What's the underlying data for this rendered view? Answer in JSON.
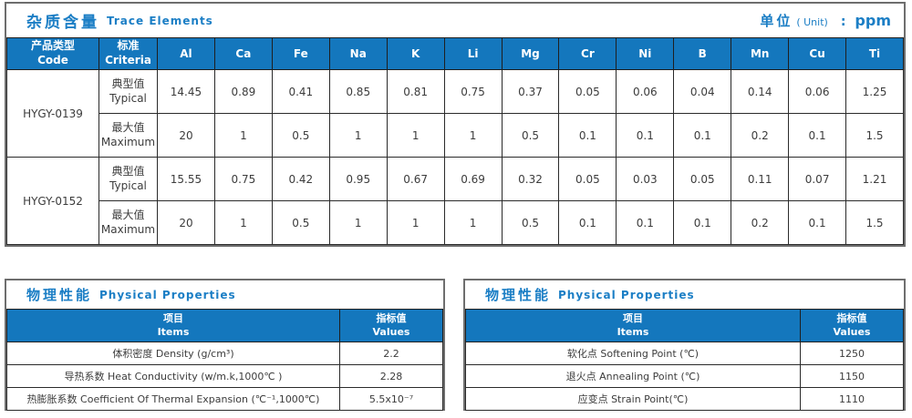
{
  "colors": {
    "accent_blue": "#1477bd",
    "title_blue": "#1b7ec5",
    "header_text": "#ffffff",
    "body_text": "#3c3c3c",
    "inner_border": "#2a2a2a",
    "frame_border": "#6e6e6e"
  },
  "trace": {
    "title_zh": "杂质含量",
    "title_en": "Trace Elements",
    "unit_zh": "单位",
    "unit_en": "( Unit)",
    "unit_colon": ":",
    "unit_value": "ppm",
    "col_code_zh": "产品类型",
    "col_code_en": "Code",
    "col_criteria_zh": "标准",
    "col_criteria_en": "Criteria",
    "elements": [
      "Al",
      "Ca",
      "Fe",
      "Na",
      "K",
      "Li",
      "Mg",
      "Cr",
      "Ni",
      "B",
      "Mn",
      "Cu",
      "Ti"
    ],
    "rows": [
      {
        "code": "HYGY-0139",
        "criteria_zh": "典型值",
        "criteria_en": "Typical",
        "values": [
          "14.45",
          "0.89",
          "0.41",
          "0.85",
          "0.81",
          "0.75",
          "0.37",
          "0.05",
          "0.06",
          "0.04",
          "0.14",
          "0.06",
          "1.25"
        ]
      },
      {
        "code": "HYGY-0139",
        "criteria_zh": "最大值",
        "criteria_en": "Maximum",
        "values": [
          "20",
          "1",
          "0.5",
          "1",
          "1",
          "1",
          "0.5",
          "0.1",
          "0.1",
          "0.1",
          "0.2",
          "0.1",
          "1.5"
        ]
      },
      {
        "code": "HYGY-0152",
        "criteria_zh": "典型值",
        "criteria_en": "Typical",
        "values": [
          "15.55",
          "0.75",
          "0.42",
          "0.95",
          "0.67",
          "0.69",
          "0.32",
          "0.05",
          "0.03",
          "0.05",
          "0.11",
          "0.07",
          "1.21"
        ]
      },
      {
        "code": "HYGY-0152",
        "criteria_zh": "最大值",
        "criteria_en": "Maximum",
        "values": [
          "20",
          "1",
          "0.5",
          "1",
          "1",
          "1",
          "0.5",
          "0.1",
          "0.1",
          "0.1",
          "0.2",
          "0.1",
          "1.5"
        ]
      }
    ]
  },
  "physical_left": {
    "title_zh": "物理性能",
    "title_en": "Physical Properties",
    "col_items_zh": "项目",
    "col_items_en": "Items",
    "col_values_zh": "指标值",
    "col_values_en": "Values",
    "rows": [
      {
        "item": "体积密度 Density (g/cm³)",
        "value": "2.2"
      },
      {
        "item": "导热系数 Heat Conductivity (w/m.k,1000℃ )",
        "value": "2.28"
      },
      {
        "item": "热膨胀系数 Coefficient Of Thermal Expansion (℃⁻¹,1000℃)",
        "value": "5.5x10⁻⁷"
      }
    ]
  },
  "physical_right": {
    "title_zh": "物理性能",
    "title_en": "Physical Properties",
    "col_items_zh": "项目",
    "col_items_en": "Items",
    "col_values_zh": "指标值",
    "col_values_en": "Values",
    "rows": [
      {
        "item": "软化点 Softening Point (℃)",
        "value": "1250"
      },
      {
        "item": "退火点 Annealing Point (℃)",
        "value": "1150"
      },
      {
        "item": "应变点 Strain Point(℃)",
        "value": "1110"
      }
    ]
  }
}
